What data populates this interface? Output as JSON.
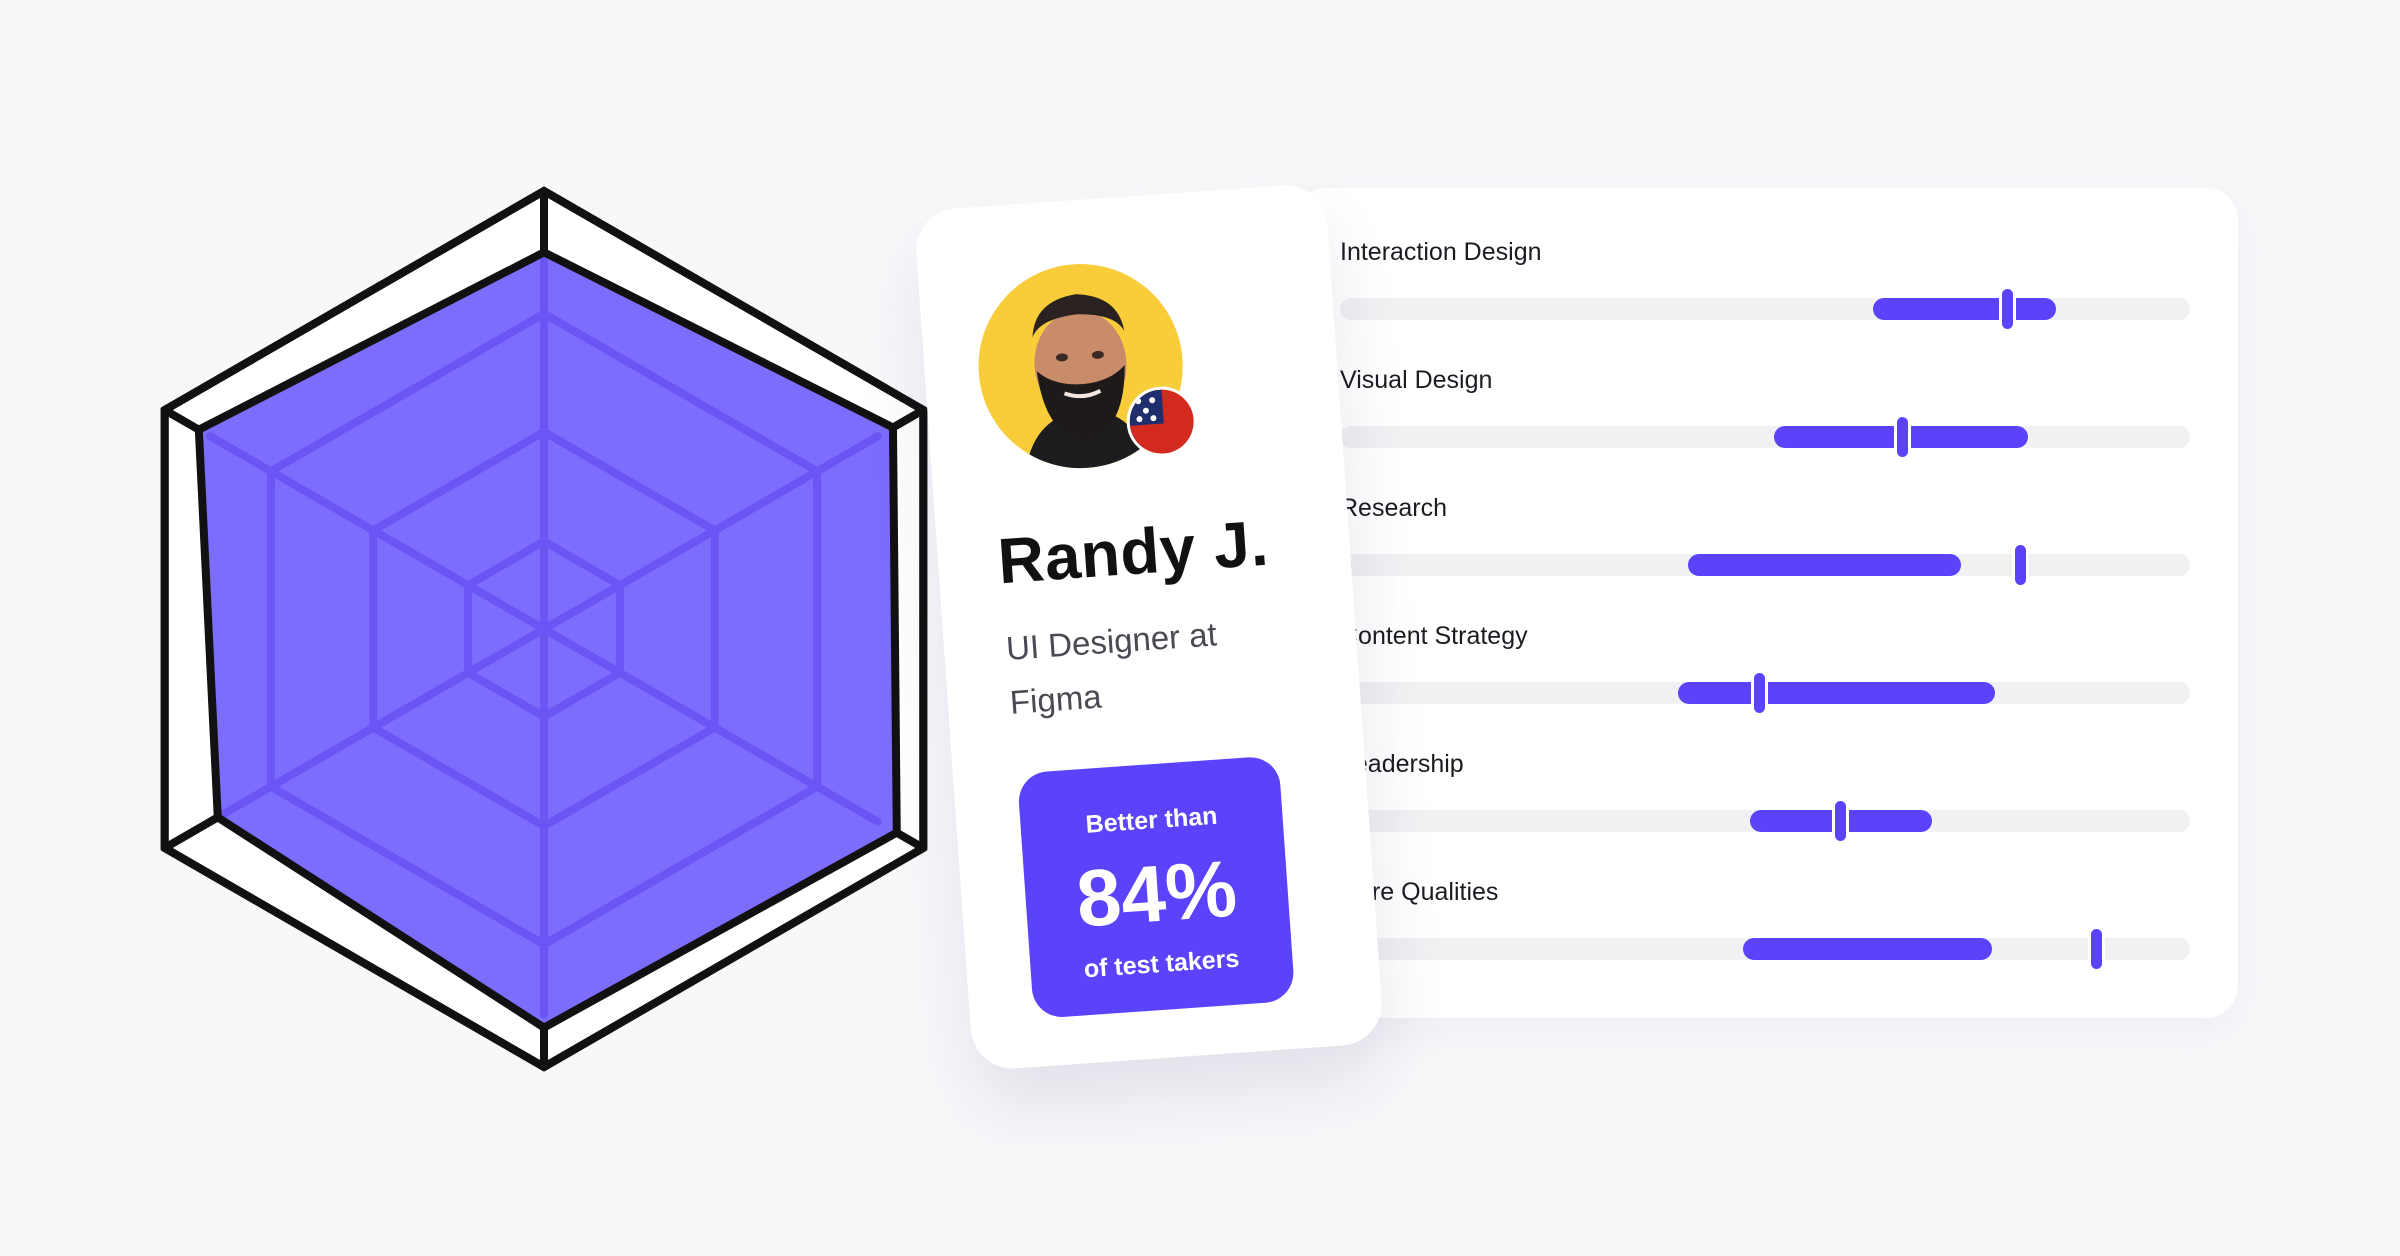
{
  "radar": {
    "axes": 6,
    "max": 100,
    "values": [
      86,
      92,
      93,
      91,
      86,
      91
    ],
    "fill_color": "#7d6dfd",
    "outline_color": "#111111"
  },
  "profile": {
    "name": "Randy J.",
    "title": "UI Designer at Figma",
    "flag_icon": "us-flag-icon",
    "avatar_bg": "#f9cc3a",
    "score": {
      "top_label": "Better than",
      "value": "84%",
      "bottom_label": "of test takers"
    }
  },
  "skills": [
    {
      "label": "Interaction Design",
      "range": [
        0.627,
        0.842
      ],
      "marker": 0.785
    },
    {
      "label": "Visual Design",
      "range": [
        0.511,
        0.809
      ],
      "marker": 0.661
    },
    {
      "label": "Research",
      "range": [
        0.409,
        0.731
      ],
      "marker": 0.8
    },
    {
      "label": "Content Strategy",
      "range": [
        0.398,
        0.771
      ],
      "marker": 0.493
    },
    {
      "label": "Leadership",
      "range": [
        0.482,
        0.697
      ],
      "marker": 0.588
    },
    {
      "label": "Core Qualities",
      "range": [
        0.474,
        0.767
      ],
      "marker": 0.889
    }
  ],
  "accent_color": "#5a43fb"
}
